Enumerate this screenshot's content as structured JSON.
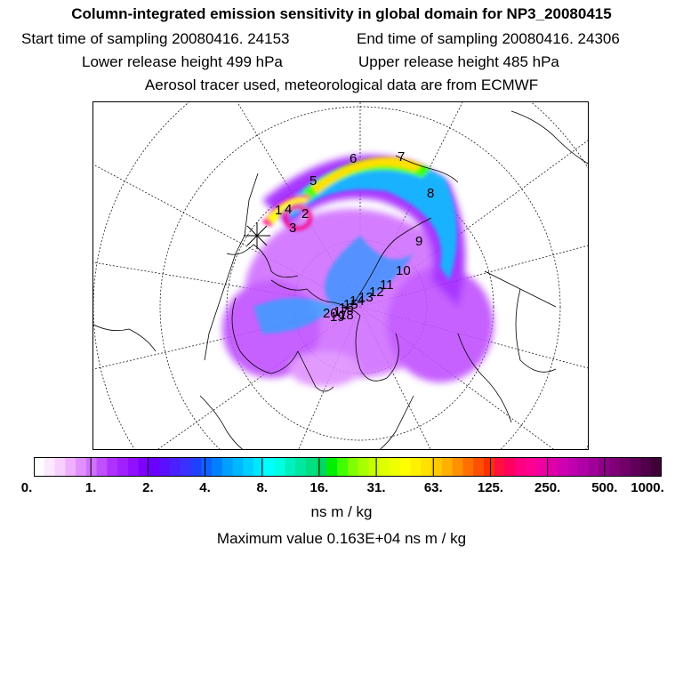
{
  "header": {
    "title": "Column-integrated emission sensitivity in global domain for NP3_20080415",
    "start_label": "Start time of sampling 20080416. 24153",
    "end_label": "End time of sampling 20080416. 24306",
    "lower_label": "Lower release height  499 hPa",
    "upper_label": "Upper release height  485 hPa",
    "tracer_note": "Aerosol tracer used, meteorological data are from ECMWF"
  },
  "map": {
    "markers": [
      "1",
      "2",
      "3",
      "4",
      "5",
      "6",
      "7",
      "8",
      "9",
      "10",
      "11",
      "12",
      "13",
      "14",
      "15",
      "16",
      "17",
      "18",
      "19",
      "20"
    ]
  },
  "colorbar": {
    "tick_labels": [
      "0.",
      "1.",
      "2.",
      "4.",
      "8.",
      "16.",
      "31.",
      "63.",
      "125.",
      "250.",
      "500.",
      "1000."
    ],
    "colors": [
      "#ffffff",
      "#fce8ff",
      "#f8d0ff",
      "#f0b0ff",
      "#e090ff",
      "#d070ff",
      "#c050ff",
      "#b030ff",
      "#a020ff",
      "#9010ff",
      "#8000ff",
      "#6a00ff",
      "#5a10ff",
      "#4a20ff",
      "#3a30ff",
      "#2040ff",
      "#1060ff",
      "#0080ff",
      "#00a0ff",
      "#00b8ff",
      "#00d0ff",
      "#00e8ff",
      "#00ffff",
      "#00ffe0",
      "#00f0c0",
      "#00e8a0",
      "#00e080",
      "#00d860",
      "#00f000",
      "#40ff00",
      "#80ff00",
      "#a8ff00",
      "#c8ff00",
      "#e0ff00",
      "#f0ff00",
      "#ffff00",
      "#fff000",
      "#ffe000",
      "#ffc800",
      "#ffb000",
      "#ff9000",
      "#ff7000",
      "#ff5000",
      "#ff3000",
      "#ff1040",
      "#ff0060",
      "#ff0080",
      "#ff0090",
      "#f000a0",
      "#e000a8",
      "#d000b0",
      "#c000b0",
      "#b000a8",
      "#a00098",
      "#900088",
      "#800078",
      "#700068",
      "#600058",
      "#500048",
      "#400038"
    ],
    "units": "ns m / kg",
    "max_value_label": "Maximum value  0.163E+04 ns m / kg"
  }
}
